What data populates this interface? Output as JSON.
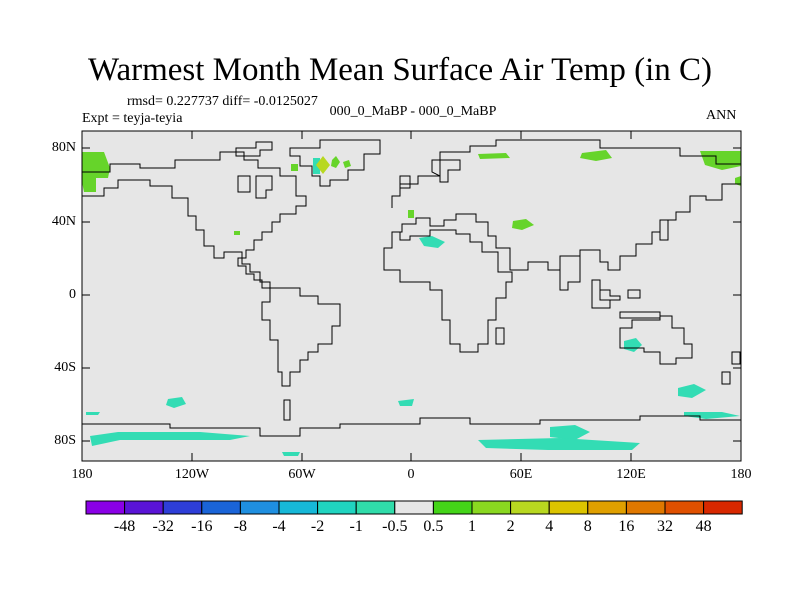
{
  "title": "Warmest Month Mean Surface Air Temp (in C)",
  "stats_line": "rmsd= 0.227737 diff= -0.0125027",
  "experiment_label": "Expt = teyja-teyia",
  "subtitle": "000_0_MaBP - 000_0_MaBP",
  "season": "ANN",
  "lat_ticks": [
    "80N",
    "40N",
    "0",
    "40S",
    "80S"
  ],
  "lon_ticks": [
    "180",
    "120W",
    "60W",
    "0",
    "60E",
    "120E",
    "180"
  ],
  "colorbar": {
    "labels": [
      "-48",
      "-32",
      "-16",
      "-8",
      "-4",
      "-2",
      "-1",
      "-0.5",
      "0.5",
      "1",
      "2",
      "4",
      "8",
      "16",
      "32",
      "48"
    ],
    "colors": [
      "#8a00e6",
      "#5a14d6",
      "#2e3ed8",
      "#1a64d8",
      "#1f8fe0",
      "#16b8d8",
      "#20d4c0",
      "#30dcaa",
      "#e6e6e6",
      "#44d418",
      "#8ad820",
      "#b8d820",
      "#dcc400",
      "#e0a000",
      "#e07800",
      "#e05000",
      "#d82800"
    ]
  },
  "colors": {
    "ocean": "#e6e6e6",
    "positive_small": "#66d42a",
    "negative_small": "#33dcb4",
    "coast": "#000000"
  }
}
